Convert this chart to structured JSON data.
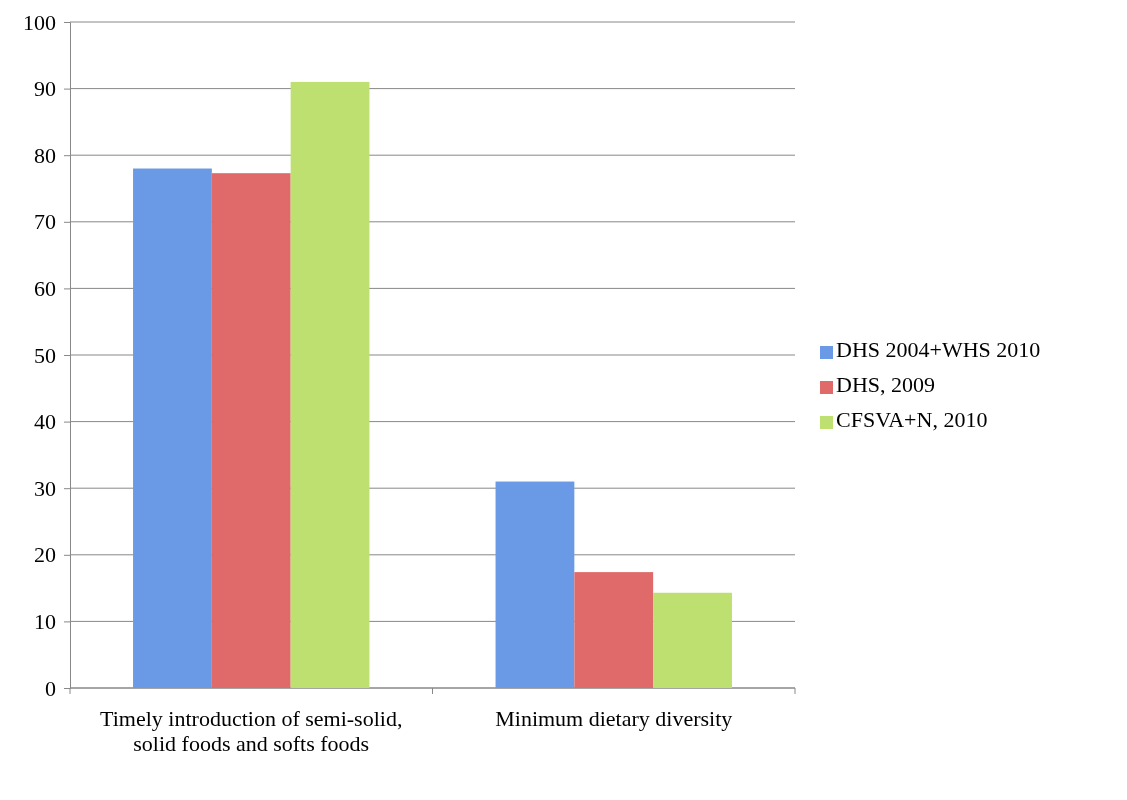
{
  "chart_data": {
    "type": "bar",
    "categories": [
      "Timely introduction of semi-solid, solid foods and softs foods",
      "Minimum dietary diversity"
    ],
    "series": [
      {
        "name": "DHS 2004+WHS 2010",
        "color": "#6a9ae6",
        "values": [
          78,
          31
        ]
      },
      {
        "name": "DHS, 2009",
        "color": "#e06a6a",
        "values": [
          77.3,
          17.4
        ]
      },
      {
        "name": "CFSVA+N, 2010",
        "color": "#bde070",
        "values": [
          91,
          14.3
        ]
      }
    ],
    "ylim": [
      0,
      100
    ],
    "yticks": [
      0,
      10,
      20,
      30,
      40,
      50,
      60,
      70,
      80,
      90,
      100
    ],
    "grid": "y",
    "legend": "right"
  }
}
